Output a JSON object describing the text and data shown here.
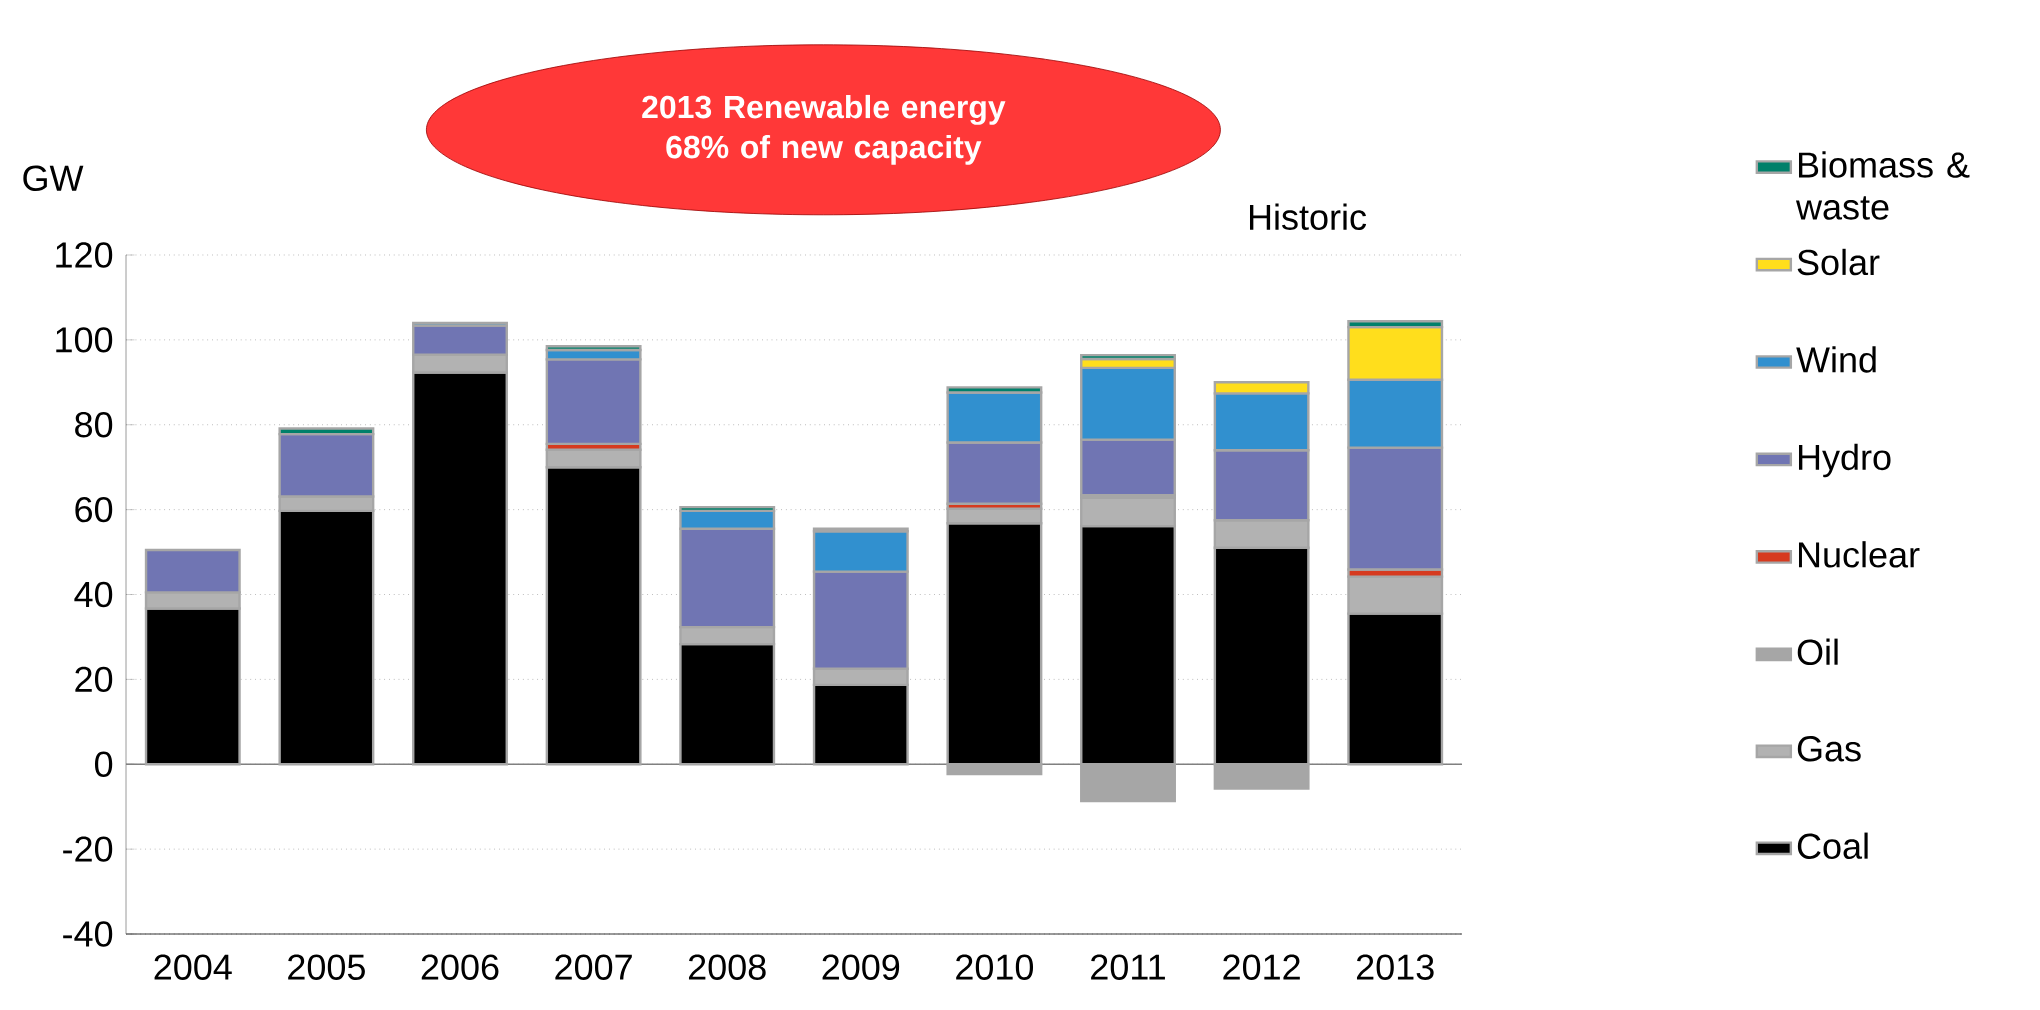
{
  "chart_data": {
    "type": "bar",
    "stacked": true,
    "ylabel": "GW",
    "categories": [
      "2004",
      "2005",
      "2006",
      "2007",
      "2008",
      "2009",
      "2010",
      "2011",
      "2012",
      "2013"
    ],
    "series": [
      {
        "name": "Coal",
        "color": "#000000",
        "values": [
          36.7,
          59.7,
          92.3,
          70.0,
          28.3,
          18.7,
          56.8,
          56.1,
          51.0,
          35.5
        ]
      },
      {
        "name": "Gas",
        "color": "#b2b2b2",
        "values": [
          3.8,
          3.4,
          4.2,
          4.1,
          4.0,
          3.8,
          3.4,
          6.7,
          6.5,
          8.7
        ]
      },
      {
        "name": "Oil",
        "color": "#a6a6a6",
        "values": [
          null,
          null,
          null,
          null,
          null,
          null,
          -2.3,
          -8.7,
          -5.7,
          null
        ]
      },
      {
        "name": "Nuclear",
        "color": "#d63a1f",
        "values": [
          null,
          null,
          null,
          1.4,
          null,
          null,
          1.2,
          0.6,
          null,
          1.7
        ]
      },
      {
        "name": "Hydro",
        "color": "#7075b3",
        "values": [
          10.0,
          14.7,
          6.9,
          19.9,
          23.2,
          22.9,
          14.4,
          13.1,
          16.5,
          28.7
        ]
      },
      {
        "name": "Wind",
        "color": "#3190cf",
        "values": [
          null,
          null,
          0.6,
          2.2,
          4.2,
          9.5,
          11.8,
          16.9,
          13.4,
          16.0
        ]
      },
      {
        "name": "Solar",
        "color": "#ffde1c",
        "values": [
          null,
          null,
          null,
          null,
          null,
          null,
          null,
          2.1,
          2.6,
          12.4
        ]
      },
      {
        "name": "Biomass & waste",
        "color": "#00806a",
        "values": [
          null,
          1.3,
          null,
          0.9,
          0.9,
          0.6,
          1.2,
          0.9,
          null,
          1.4
        ]
      }
    ],
    "ylim": [
      -40,
      120
    ],
    "yticks": [
      -40,
      -20,
      0,
      20,
      40,
      60,
      80,
      100,
      120
    ],
    "grid": "y",
    "legend": "right",
    "annotations": [
      "2013 Renewable energy 68% of new capacity",
      "Historic"
    ]
  }
}
